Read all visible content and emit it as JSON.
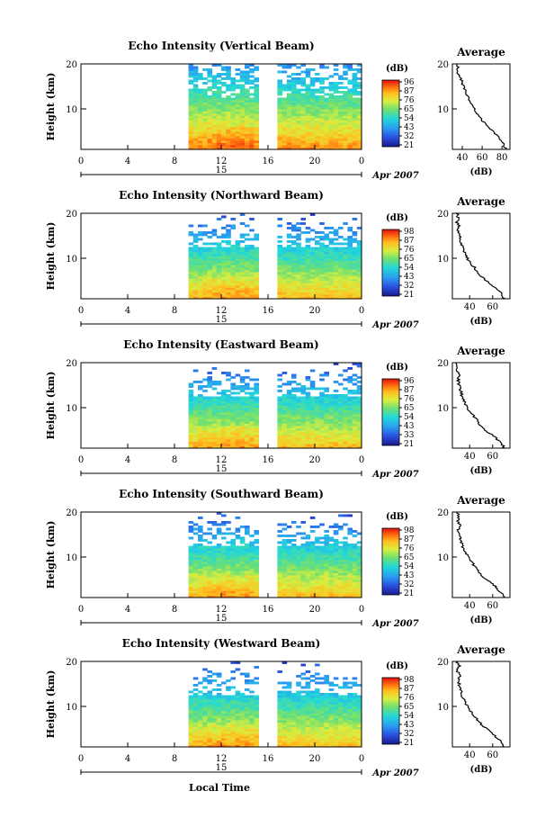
{
  "figure": {
    "xlabel": "Local Time",
    "day_label": "15",
    "date_label": "Apr 2007"
  },
  "chart_data": [
    {
      "type": "heatmap",
      "title": "Echo Intensity (Vertical Beam)",
      "ylabel": "Height (km)",
      "x_ticks": [
        "0",
        "4",
        "8",
        "12",
        "16",
        "20",
        "0"
      ],
      "y_ticks": [
        "20",
        "10"
      ],
      "xlim": [
        0,
        24
      ],
      "ylim": [
        1,
        20
      ],
      "data_gap_hours": [
        [
          8,
          9.2
        ],
        [
          15.2,
          16.6
        ]
      ],
      "colorbar": {
        "label": "(dB)",
        "ticks": [
          "96",
          "87",
          "76",
          "65",
          "54",
          "43",
          "32",
          "21"
        ]
      },
      "profile": {
        "title": "Average",
        "xlabel": "(dB)",
        "x_ticks": [
          "40",
          "60",
          "80"
        ],
        "y_ticks": [
          "20",
          "10"
        ],
        "xlim": [
          30,
          88
        ],
        "height_km": [
          1,
          2,
          3,
          4,
          5,
          6,
          7,
          8,
          9,
          10,
          11,
          12,
          13,
          14,
          15,
          16,
          17,
          18,
          19,
          20
        ],
        "db": [
          84,
          82,
          79,
          75,
          71,
          66,
          62,
          58,
          55,
          52,
          49,
          47,
          45,
          43,
          41,
          40,
          38,
          34,
          36,
          34
        ]
      }
    },
    {
      "type": "heatmap",
      "title": "Echo Intensity (Northward Beam)",
      "ylabel": "Height (km)",
      "x_ticks": [
        "0",
        "4",
        "8",
        "12",
        "16",
        "20",
        "0"
      ],
      "y_ticks": [
        "20",
        "10"
      ],
      "xlim": [
        0,
        24
      ],
      "ylim": [
        1,
        20
      ],
      "data_gap_hours": [
        [
          8,
          9.2
        ],
        [
          15.2,
          16.6
        ]
      ],
      "colorbar": {
        "label": "(dB)",
        "ticks": [
          "98",
          "87",
          "76",
          "65",
          "54",
          "43",
          "32",
          "21"
        ]
      },
      "profile": {
        "title": "Average",
        "xlabel": "(dB)",
        "x_ticks": [
          "40",
          "60"
        ],
        "y_ticks": [
          "20",
          "10"
        ],
        "xlim": [
          25,
          75
        ],
        "height_km": [
          1,
          2,
          3,
          4,
          5,
          6,
          7,
          8,
          9,
          10,
          11,
          12,
          13,
          14,
          15,
          16,
          17,
          18,
          19,
          20
        ],
        "db": [
          70,
          68,
          64,
          60,
          55,
          50,
          47,
          44,
          41,
          38,
          36,
          34,
          33,
          32,
          31,
          30,
          31,
          29,
          30,
          29
        ]
      }
    },
    {
      "type": "heatmap",
      "title": "Echo Intensity (Eastward Beam)",
      "ylabel": "Height (km)",
      "x_ticks": [
        "0",
        "4",
        "8",
        "12",
        "16",
        "20",
        "0"
      ],
      "y_ticks": [
        "20",
        "10"
      ],
      "xlim": [
        0,
        24
      ],
      "ylim": [
        1,
        20
      ],
      "data_gap_hours": [
        [
          8,
          9.2
        ],
        [
          15.2,
          16.6
        ]
      ],
      "colorbar": {
        "label": "(dB)",
        "ticks": [
          "96",
          "87",
          "76",
          "65",
          "54",
          "43",
          "33",
          "21"
        ]
      },
      "profile": {
        "title": "Average",
        "xlabel": "(dB)",
        "x_ticks": [
          "40",
          "60"
        ],
        "y_ticks": [
          "20",
          "10"
        ],
        "xlim": [
          25,
          75
        ],
        "height_km": [
          1,
          2,
          3,
          4,
          5,
          6,
          7,
          8,
          9,
          10,
          11,
          12,
          13,
          14,
          15,
          16,
          17,
          18,
          19,
          20
        ],
        "db": [
          70,
          68,
          64,
          59,
          54,
          50,
          47,
          44,
          41,
          38,
          36,
          34,
          33,
          32,
          31,
          30,
          31,
          29,
          30,
          29
        ]
      }
    },
    {
      "type": "heatmap",
      "title": "Echo Intensity (Southward Beam)",
      "ylabel": "Height (km)",
      "x_ticks": [
        "0",
        "4",
        "8",
        "12",
        "16",
        "20",
        "0"
      ],
      "y_ticks": [
        "20",
        "10"
      ],
      "xlim": [
        0,
        24
      ],
      "ylim": [
        1,
        20
      ],
      "data_gap_hours": [
        [
          8,
          9.2
        ],
        [
          15.2,
          16.6
        ]
      ],
      "colorbar": {
        "label": "(dB)",
        "ticks": [
          "98",
          "87",
          "76",
          "65",
          "54",
          "43",
          "32",
          "21"
        ]
      },
      "profile": {
        "title": "Average",
        "xlabel": "(dB)",
        "x_ticks": [
          "40",
          "60"
        ],
        "y_ticks": [
          "20",
          "10"
        ],
        "xlim": [
          25,
          75
        ],
        "height_km": [
          1,
          2,
          3,
          4,
          5,
          6,
          7,
          8,
          9,
          10,
          11,
          12,
          13,
          14,
          15,
          16,
          17,
          18,
          19,
          20
        ],
        "db": [
          70,
          68,
          64,
          60,
          55,
          50,
          47,
          44,
          42,
          39,
          36,
          34,
          33,
          32,
          31,
          30,
          32,
          29,
          31,
          29
        ]
      }
    },
    {
      "type": "heatmap",
      "title": "Echo Intensity (Westward Beam)",
      "ylabel": "Height (km)",
      "x_ticks": [
        "0",
        "4",
        "8",
        "12",
        "16",
        "20",
        "0"
      ],
      "y_ticks": [
        "20",
        "10"
      ],
      "xlim": [
        0,
        24
      ],
      "ylim": [
        1,
        20
      ],
      "data_gap_hours": [
        [
          8,
          9.2
        ],
        [
          15.2,
          16.6
        ]
      ],
      "colorbar": {
        "label": "(dB)",
        "ticks": [
          "98",
          "87",
          "76",
          "65",
          "54",
          "43",
          "32",
          "21"
        ]
      },
      "profile": {
        "title": "Average",
        "xlabel": "(dB)",
        "x_ticks": [
          "40",
          "60"
        ],
        "y_ticks": [
          "20",
          "10"
        ],
        "xlim": [
          25,
          75
        ],
        "height_km": [
          1,
          2,
          3,
          4,
          5,
          6,
          7,
          8,
          9,
          10,
          11,
          12,
          13,
          14,
          15,
          16,
          17,
          18,
          19,
          20
        ],
        "db": [
          70,
          68,
          64,
          60,
          55,
          50,
          47,
          44,
          41,
          38,
          36,
          34,
          33,
          32,
          31,
          30,
          32,
          29,
          31,
          29
        ]
      }
    }
  ]
}
